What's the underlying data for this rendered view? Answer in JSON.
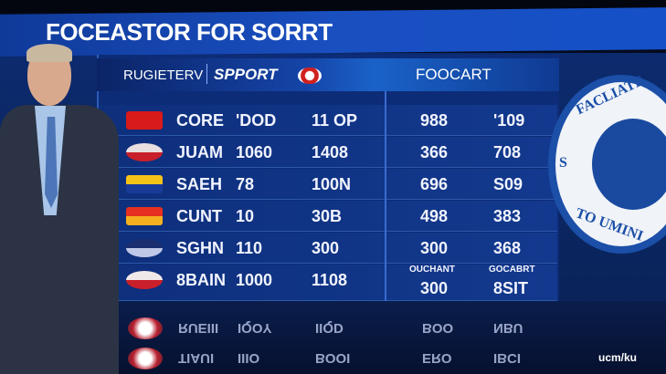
{
  "banner": {
    "title": "FOCEASTOR FOR SORRT"
  },
  "board": {
    "header": {
      "label1": "RUGIETERV",
      "label2": "SPPORT",
      "label3": "FOOCART"
    },
    "rows": [
      {
        "flag_colors": [
          "#d91a1a",
          "#d91a1a"
        ],
        "name": "CORE",
        "c2": "'DOD",
        "c3": "11 OP",
        "c4": "988",
        "c5": "'109"
      },
      {
        "flag_colors": [
          "#e8e0e0",
          "#c81f2a"
        ],
        "name": "JUAM",
        "c2": "1060",
        "c3": "1408",
        "c4": "366",
        "c5": "708"
      },
      {
        "flag_colors": [
          "#f5c21a",
          "#1a3a9a"
        ],
        "name": "SAEH",
        "c2": "78",
        "c3": "100N",
        "c4": "696",
        "c5": "S09"
      },
      {
        "flag_colors": [
          "#e83020",
          "#f5b020"
        ],
        "name": "CUNT",
        "c2": "10",
        "c3": "30B",
        "c4": "498",
        "c5": "383"
      },
      {
        "flag_colors": [
          "#1b2f70",
          "#c0c8e8"
        ],
        "name": "SGHN",
        "c2": "110",
        "c3": "300",
        "c4": "300",
        "c5": "368"
      },
      {
        "flag_colors": [
          "#f0e8e8",
          "#c81f2a"
        ],
        "name": "8BAIN",
        "c2": "1000",
        "c3": "1108",
        "c4": "300",
        "c5": "8SIT",
        "c4_label": "OUCHANT",
        "c5_label": "GOCABRT"
      }
    ],
    "reflection_rows": [
      {
        "name": "RUEIII",
        "c2": "IQOY",
        "c3": "IIQD",
        "c4": "BOO",
        "c5": "NBU"
      },
      {
        "name": "TIAUI",
        "c2": "IIIO",
        "c3": "BOOI",
        "c4": "ERO",
        "c5": "IBCI"
      }
    ]
  },
  "seal": {
    "top_text": "FACLIATE",
    "left_text": "S",
    "bottom_text": "TO UMINI"
  },
  "watermark": "ucm/ku",
  "colors": {
    "banner": "#1a4fc0",
    "board": "#0d2c78",
    "text": "#ffffff"
  }
}
